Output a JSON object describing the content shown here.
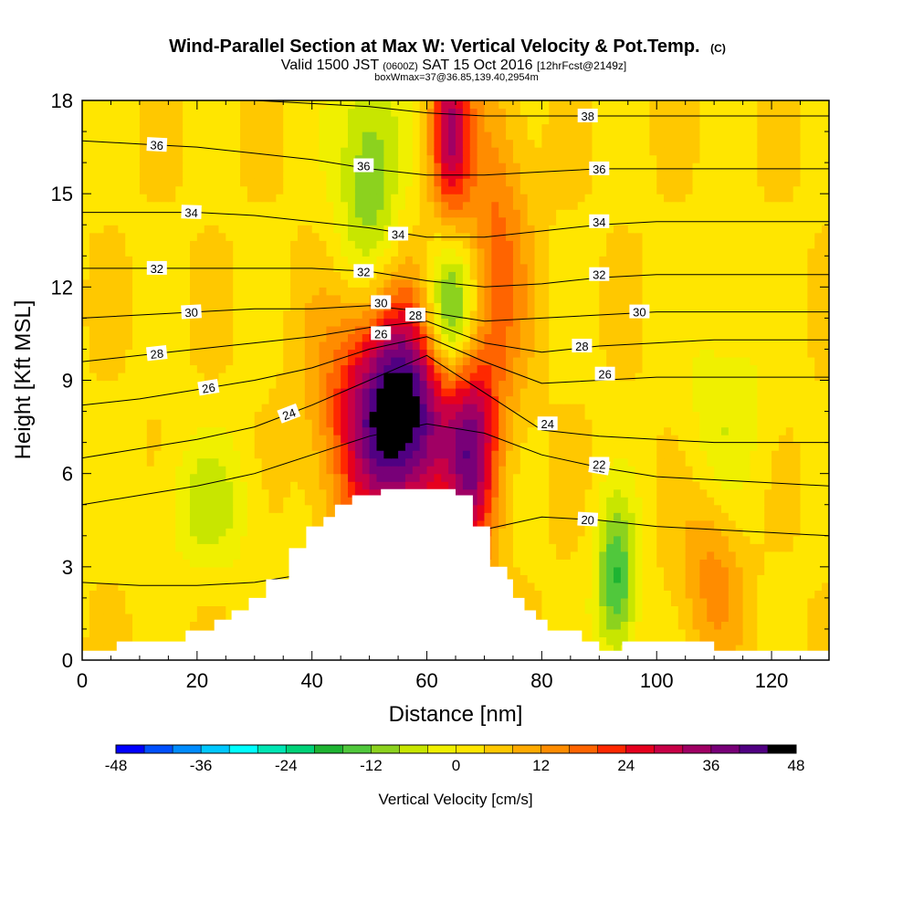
{
  "chart_data": {
    "type": "heatmap",
    "title": "Wind-Parallel Section at Max W: Vertical Velocity & Pot.Temp.",
    "title_mark": "(C)",
    "subtitle_valid": "Valid 1500 JST",
    "subtitle_z": "(0600Z)",
    "subtitle_date": "SAT 15 Oct 2016",
    "subtitle_fcst": "[12hrFcst@2149z]",
    "subtitle_box": "boxWmax=37@36.85,139.40,2954m",
    "xlabel": "Distance [nm]",
    "ylabel": "Height [Kft MSL]",
    "xlim": [
      0,
      130
    ],
    "ylim": [
      0,
      18
    ],
    "x_ticks": [
      "0",
      "20",
      "40",
      "60",
      "80",
      "100",
      "120"
    ],
    "y_ticks": [
      "0",
      "3",
      "6",
      "9",
      "12",
      "15",
      "18"
    ],
    "colorbar": {
      "label": "Vertical Velocity [cm/s]",
      "ticks": [
        "-48",
        "-36",
        "-24",
        "-12",
        "0",
        "12",
        "24",
        "36",
        "48"
      ],
      "range": [
        -48,
        48
      ],
      "colors": [
        "#0000ff",
        "#0050ff",
        "#008cff",
        "#00c8ff",
        "#00ffff",
        "#00e6b4",
        "#00d278",
        "#1eb432",
        "#50c83c",
        "#8cd21e",
        "#c8e600",
        "#f0f000",
        "#ffe600",
        "#ffc800",
        "#ffaa00",
        "#ff8c00",
        "#ff6400",
        "#ff2800",
        "#e6001e",
        "#c80046",
        "#a00064",
        "#780078",
        "#500082",
        "#000000"
      ]
    },
    "terrain_nm_kft": [
      [
        0,
        0.3
      ],
      [
        6,
        0.3
      ],
      [
        6,
        0.6
      ],
      [
        18,
        0.6
      ],
      [
        18,
        0.95
      ],
      [
        23,
        0.95
      ],
      [
        23,
        1.3
      ],
      [
        26,
        1.3
      ],
      [
        26,
        1.6
      ],
      [
        29,
        1.6
      ],
      [
        29,
        2.0
      ],
      [
        32,
        2.0
      ],
      [
        32,
        2.6
      ],
      [
        36,
        2.6
      ],
      [
        36,
        3.6
      ],
      [
        39,
        3.6
      ],
      [
        39,
        4.3
      ],
      [
        42,
        4.3
      ],
      [
        42,
        4.6
      ],
      [
        44,
        4.6
      ],
      [
        44,
        5.0
      ],
      [
        47,
        5.0
      ],
      [
        47,
        5.3
      ],
      [
        52,
        5.3
      ],
      [
        52,
        5.5
      ],
      [
        65,
        5.5
      ],
      [
        65,
        5.3
      ],
      [
        68,
        5.3
      ],
      [
        68,
        4.3
      ],
      [
        71,
        4.3
      ],
      [
        71,
        3.0
      ],
      [
        74,
        3.0
      ],
      [
        74,
        2.6
      ],
      [
        75,
        2.6
      ],
      [
        75,
        2.0
      ],
      [
        77,
        2.0
      ],
      [
        77,
        1.6
      ],
      [
        79,
        1.6
      ],
      [
        79,
        1.3
      ],
      [
        81,
        1.3
      ],
      [
        81,
        0.95
      ],
      [
        87,
        0.95
      ],
      [
        87,
        0.6
      ],
      [
        90,
        0.6
      ],
      [
        90,
        0.3
      ],
      [
        94,
        0.3
      ],
      [
        94,
        0.6
      ],
      [
        110,
        0.6
      ],
      [
        110,
        0.3
      ],
      [
        130,
        0.3
      ]
    ],
    "isentropes": [
      {
        "label": "20",
        "x": [
          0,
          10,
          20,
          30,
          40,
          50,
          60,
          70,
          80,
          90,
          100,
          110,
          120,
          130
        ],
        "y": [
          2.5,
          2.4,
          2.4,
          2.5,
          2.8,
          3.1,
          3.5,
          4.2,
          4.6,
          4.5,
          4.3,
          4.2,
          4.1,
          4.0
        ],
        "label_x": 88
      },
      {
        "label": "22",
        "x": [
          0,
          10,
          20,
          30,
          40,
          50,
          60,
          70,
          80,
          90,
          100,
          110,
          120,
          130
        ],
        "y": [
          5.0,
          5.3,
          5.6,
          6.0,
          6.6,
          7.2,
          7.6,
          7.3,
          6.6,
          6.2,
          5.9,
          5.8,
          5.7,
          5.6
        ],
        "label_x": 90
      },
      {
        "label": "24",
        "x": [
          0,
          10,
          20,
          30,
          40,
          50,
          60,
          70,
          80,
          90,
          100,
          110,
          120,
          130
        ],
        "y": [
          6.5,
          6.8,
          7.1,
          7.5,
          8.2,
          9.0,
          9.8,
          8.6,
          7.4,
          7.2,
          7.1,
          7.0,
          7.0,
          7.0
        ],
        "label_x": 36
      },
      {
        "label": "26",
        "x": [
          0,
          10,
          20,
          30,
          40,
          50,
          60,
          70,
          80,
          90,
          100,
          110,
          120,
          130
        ],
        "y": [
          8.2,
          8.4,
          8.7,
          9.0,
          9.4,
          10.0,
          10.4,
          9.6,
          8.9,
          9.0,
          9.1,
          9.1,
          9.1,
          9.1
        ],
        "label_x": 22
      },
      {
        "label": "28",
        "x": [
          0,
          10,
          20,
          30,
          40,
          50,
          60,
          70,
          80,
          90,
          100,
          110,
          120,
          130
        ],
        "y": [
          9.6,
          9.8,
          10.0,
          10.2,
          10.4,
          10.7,
          10.9,
          10.2,
          9.9,
          10.1,
          10.2,
          10.3,
          10.3,
          10.3
        ],
        "label_x": 13
      },
      {
        "label": "30",
        "x": [
          0,
          10,
          20,
          30,
          40,
          50,
          60,
          70,
          80,
          90,
          100,
          110,
          120,
          130
        ],
        "y": [
          11.0,
          11.1,
          11.2,
          11.3,
          11.3,
          11.4,
          11.2,
          10.9,
          11.0,
          11.1,
          11.2,
          11.2,
          11.2,
          11.2
        ],
        "label_x": 19
      },
      {
        "label": "32",
        "x": [
          0,
          10,
          20,
          30,
          40,
          50,
          60,
          70,
          80,
          90,
          100,
          110,
          120,
          130
        ],
        "y": [
          12.6,
          12.6,
          12.6,
          12.6,
          12.6,
          12.5,
          12.2,
          12.0,
          12.1,
          12.3,
          12.4,
          12.4,
          12.4,
          12.4
        ],
        "label_x": 13
      },
      {
        "label": "34",
        "x": [
          0,
          10,
          20,
          30,
          40,
          50,
          60,
          70,
          80,
          90,
          100,
          110,
          120,
          130
        ],
        "y": [
          14.4,
          14.4,
          14.4,
          14.3,
          14.1,
          13.9,
          13.6,
          13.6,
          13.8,
          14.0,
          14.1,
          14.1,
          14.1,
          14.1
        ],
        "label_x": 19
      },
      {
        "label": "36",
        "x": [
          0,
          10,
          20,
          30,
          40,
          50,
          60,
          70,
          80,
          90,
          100,
          110,
          120,
          130
        ],
        "y": [
          16.7,
          16.6,
          16.5,
          16.3,
          16.1,
          15.8,
          15.6,
          15.6,
          15.7,
          15.8,
          15.8,
          15.8,
          15.8,
          15.8
        ],
        "label_x": 13
      },
      {
        "label": "38",
        "x": [
          0,
          10,
          20,
          30,
          40,
          50,
          60,
          70,
          80,
          90,
          100,
          110,
          120,
          130
        ],
        "y": [
          18.3,
          18.2,
          18.1,
          18.0,
          17.9,
          17.8,
          17.6,
          17.5,
          17.5,
          17.5,
          17.5,
          17.5,
          17.5,
          17.5
        ],
        "label_x": 88
      }
    ],
    "extra_contour_labels": [
      {
        "text": "36",
        "x": 90,
        "y": 15.8
      },
      {
        "text": "34",
        "x": 90,
        "y": 14.1
      },
      {
        "text": "32",
        "x": 90,
        "y": 12.4
      },
      {
        "text": "30",
        "x": 97,
        "y": 11.2
      },
      {
        "text": "28",
        "x": 87,
        "y": 10.1
      },
      {
        "text": "26",
        "x": 91,
        "y": 9.2
      },
      {
        "text": "24",
        "x": 81,
        "y": 7.6
      },
      {
        "text": "22",
        "x": 90,
        "y": 6.3
      },
      {
        "text": "36",
        "x": 49,
        "y": 15.9
      },
      {
        "text": "34",
        "x": 55,
        "y": 13.7
      },
      {
        "text": "32",
        "x": 49,
        "y": 12.5
      },
      {
        "text": "30",
        "x": 52,
        "y": 11.5
      },
      {
        "text": "28",
        "x": 58,
        "y": 11.1
      },
      {
        "text": "26",
        "x": 52,
        "y": 10.5
      }
    ],
    "velocity_features": [
      {
        "name": "updraft-core",
        "x": 55,
        "y": 8.0,
        "sx": 7.5,
        "sy": 2.6,
        "w": 48
      },
      {
        "name": "updraft-upper",
        "x": 64,
        "y": 17.0,
        "sx": 2.5,
        "sy": 2.0,
        "w": 28
      },
      {
        "name": "updraft-tilt",
        "x": 72,
        "y": 13.0,
        "sx": 4.0,
        "sy": 3.5,
        "w": 14
      },
      {
        "name": "updraft-lee",
        "x": 68,
        "y": 6.5,
        "sx": 3.0,
        "sy": 2.5,
        "w": 24
      },
      {
        "name": "downdraft-tilt",
        "x": 64,
        "y": 11.0,
        "sx": 3.5,
        "sy": 1.8,
        "w": -28
      },
      {
        "name": "downdraft-upper",
        "x": 50,
        "y": 15.5,
        "sx": 4.0,
        "sy": 3.0,
        "w": -16
      },
      {
        "name": "downdraft-lee",
        "x": 93,
        "y": 2.5,
        "sx": 2.5,
        "sy": 1.8,
        "w": -20
      },
      {
        "name": "updraft-far",
        "x": 110,
        "y": 3.0,
        "sx": 4.0,
        "sy": 2.0,
        "w": 12
      },
      {
        "name": "downdraft-left",
        "x": 22,
        "y": 5.0,
        "sx": 6.0,
        "sy": 1.5,
        "w": -9
      },
      {
        "name": "downdraft-right",
        "x": 112,
        "y": 7.5,
        "sx": 5.0,
        "sy": 3.0,
        "w": -7
      }
    ]
  }
}
